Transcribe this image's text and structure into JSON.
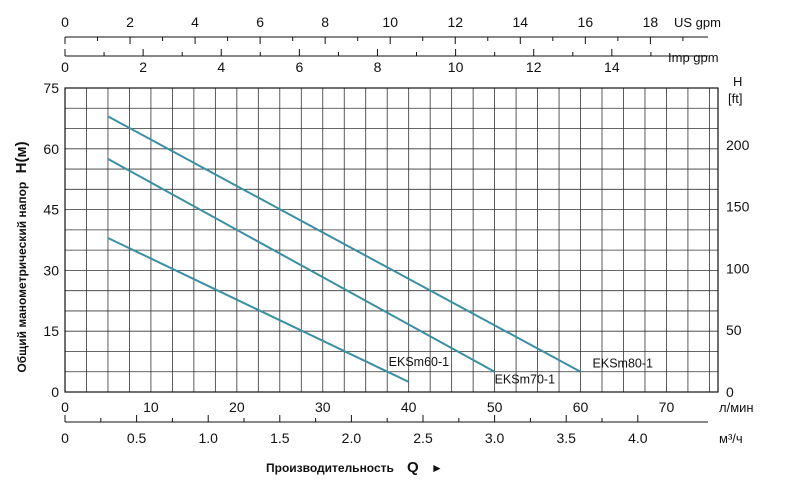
{
  "chart_data": {
    "type": "line",
    "grid": true,
    "x_axes": {
      "lpm": {
        "ticks": [
          "0",
          "10",
          "20",
          "30",
          "40",
          "50",
          "60",
          "70"
        ],
        "unit": "л/мин",
        "range": [
          0,
          76
        ]
      },
      "m3h": {
        "ticks": [
          "0",
          "0.5",
          "1.0",
          "1.5",
          "2.0",
          "2.5",
          "3.0",
          "3.5",
          "4.0"
        ],
        "unit": "м³/ч"
      },
      "us_gpm": {
        "ticks": [
          "0",
          "2",
          "4",
          "6",
          "8",
          "10",
          "12",
          "14",
          "16",
          "18"
        ],
        "unit": "US gpm"
      },
      "imp_gpm": {
        "ticks": [
          "0",
          "2",
          "4",
          "6",
          "8",
          "10",
          "12",
          "14"
        ],
        "unit": "Imp gpm"
      }
    },
    "y_axes": {
      "meters": {
        "ticks": [
          "0",
          "15",
          "30",
          "45",
          "60",
          "75"
        ],
        "range": [
          0,
          75
        ]
      },
      "feet": {
        "ticks": [
          "0",
          "50",
          "100",
          "150",
          "200"
        ],
        "unit_line1": "H",
        "unit_line2": "[ft]"
      }
    },
    "ylabel": "Общий манометрический напор",
    "ylabel_symbol": "H(м)",
    "xlabel": "Производительность",
    "xlabel_symbol": "Q",
    "xlabel_arrow": "►",
    "series": [
      {
        "name": "EKSm60-1",
        "x": [
          5,
          40
        ],
        "y": [
          38,
          2.5
        ]
      },
      {
        "name": "EKSm70-1",
        "x": [
          5,
          50
        ],
        "y": [
          57.5,
          5
        ]
      },
      {
        "name": "EKSm80-1",
        "x": [
          5,
          60
        ],
        "y": [
          68,
          5
        ]
      }
    ],
    "colors": {
      "curve": "#3a8fa3",
      "grid": "#333333"
    }
  }
}
